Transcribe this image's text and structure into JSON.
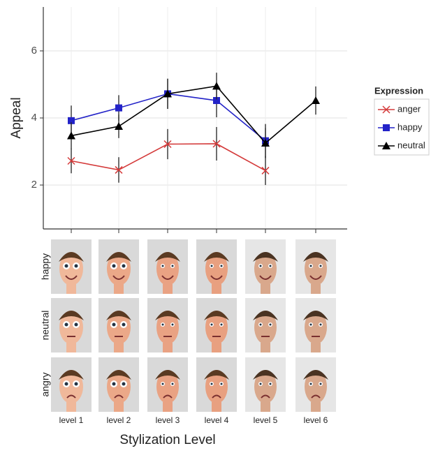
{
  "chart_data": {
    "type": "line",
    "y_label": "Appeal",
    "x_label": "Stylization Level",
    "categories": [
      "level 1",
      "level 2",
      "level 3",
      "level 4",
      "level 5",
      "level 6"
    ],
    "series": [
      {
        "name": "anger",
        "color": "#d43a3a",
        "marker": "x",
        "values": [
          2.72,
          2.45,
          3.22,
          3.23,
          2.43,
          null
        ],
        "errors": [
          0.37,
          0.38,
          0.45,
          0.5,
          0.43,
          null
        ]
      },
      {
        "name": "happy",
        "color": "#2323c8",
        "marker": "square",
        "values": [
          3.92,
          4.3,
          4.72,
          4.52,
          3.32,
          null
        ],
        "errors": [
          0.45,
          0.38,
          0.45,
          0.5,
          0.5,
          null
        ]
      },
      {
        "name": "neutral",
        "color": "#000000",
        "marker": "triangle",
        "values": [
          3.47,
          3.75,
          4.72,
          4.95,
          3.25,
          4.52
        ],
        "errors": [
          0.4,
          0.35,
          0.45,
          0.4,
          0.45,
          0.42
        ]
      }
    ],
    "legend_title": "Expression",
    "legend_position": "right",
    "ylim": [
      0.69,
      7.31
    ],
    "yticks": [
      2,
      4,
      6
    ],
    "grid": true
  },
  "face_panel": {
    "rows": [
      "happy",
      "neutral",
      "angry"
    ]
  }
}
